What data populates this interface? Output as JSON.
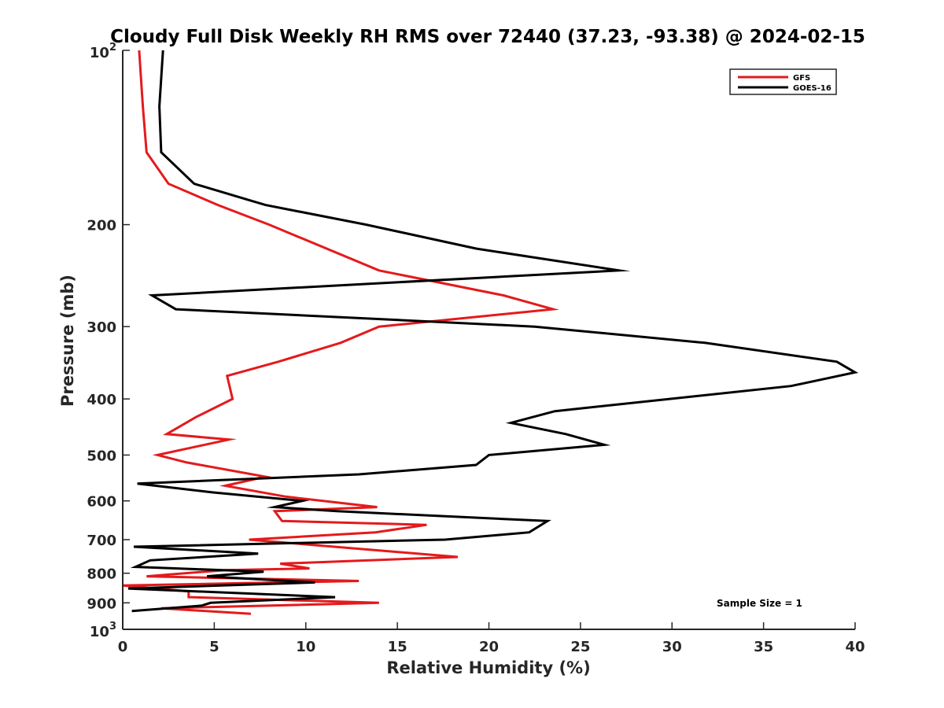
{
  "chart_data": {
    "type": "line",
    "title": "Cloudy Full Disk Weekly RH RMS over 72440 (37.23, -93.38) @ 2024-02-15",
    "xlabel": "Relative Humidity (%)",
    "ylabel": "Pressure (mb)",
    "xlim": [
      0,
      40
    ],
    "ylim": [
      100,
      1000
    ],
    "y_scale": "log",
    "y_reversed": true,
    "x_ticks": [
      "0",
      "5",
      "10",
      "15",
      "20",
      "25",
      "30",
      "35",
      "40"
    ],
    "y_ticks": [
      {
        "value": 100,
        "base": "10",
        "exp": "2"
      },
      {
        "value": 200,
        "label": "200"
      },
      {
        "value": 300,
        "label": "300"
      },
      {
        "value": 400,
        "label": "400"
      },
      {
        "value": 500,
        "label": "500"
      },
      {
        "value": 600,
        "label": "600"
      },
      {
        "value": 700,
        "label": "700"
      },
      {
        "value": 800,
        "label": "800"
      },
      {
        "value": 900,
        "label": "900"
      },
      {
        "value": 1000,
        "base": "10",
        "exp": "3"
      }
    ],
    "legend_position": "top-right",
    "annotation": "Sample Size = 1",
    "series": [
      {
        "name": "GFS",
        "color": "#e41a1c",
        "points": [
          [
            0.9,
            100
          ],
          [
            1.1,
            125
          ],
          [
            1.3,
            150
          ],
          [
            2.5,
            170
          ],
          [
            5.2,
            185
          ],
          [
            8.0,
            200
          ],
          [
            14.0,
            240
          ],
          [
            20.8,
            265
          ],
          [
            23.5,
            280
          ],
          [
            14.0,
            300
          ],
          [
            11.9,
            320
          ],
          [
            8.5,
            345
          ],
          [
            5.7,
            365
          ],
          [
            6.0,
            400
          ],
          [
            4.0,
            430
          ],
          [
            2.4,
            460
          ],
          [
            5.8,
            470
          ],
          [
            1.9,
            500
          ],
          [
            3.5,
            515
          ],
          [
            7.8,
            545
          ],
          [
            5.6,
            565
          ],
          [
            8.9,
            590
          ],
          [
            13.9,
            615
          ],
          [
            8.3,
            625
          ],
          [
            8.7,
            650
          ],
          [
            16.6,
            660
          ],
          [
            13.8,
            680
          ],
          [
            6.9,
            700
          ],
          [
            18.3,
            750
          ],
          [
            8.6,
            770
          ],
          [
            10.2,
            785
          ],
          [
            5.6,
            790
          ],
          [
            1.3,
            810
          ],
          [
            12.9,
            825
          ],
          [
            0.0,
            840
          ],
          [
            3.6,
            860
          ],
          [
            3.6,
            880
          ],
          [
            14.0,
            900
          ],
          [
            2.1,
            920
          ],
          [
            7.0,
            940
          ]
        ]
      },
      {
        "name": "GOES-16",
        "color": "#000000",
        "points": [
          [
            2.2,
            100
          ],
          [
            2.0,
            125
          ],
          [
            2.1,
            150
          ],
          [
            3.9,
            170
          ],
          [
            7.8,
            185
          ],
          [
            13.3,
            200
          ],
          [
            19.3,
            220
          ],
          [
            27.1,
            240
          ],
          [
            1.6,
            265
          ],
          [
            2.9,
            280
          ],
          [
            22.5,
            300
          ],
          [
            31.8,
            320
          ],
          [
            39.0,
            345
          ],
          [
            40.0,
            360
          ],
          [
            36.5,
            380
          ],
          [
            23.6,
            420
          ],
          [
            21.2,
            440
          ],
          [
            24.2,
            460
          ],
          [
            26.3,
            480
          ],
          [
            20.0,
            500
          ],
          [
            19.3,
            520
          ],
          [
            12.9,
            540
          ],
          [
            0.8,
            560
          ],
          [
            4.9,
            580
          ],
          [
            9.8,
            600
          ],
          [
            8.3,
            615
          ],
          [
            11.7,
            625
          ],
          [
            23.2,
            650
          ],
          [
            22.2,
            680
          ],
          [
            17.6,
            700
          ],
          [
            0.6,
            720
          ],
          [
            7.4,
            740
          ],
          [
            1.5,
            760
          ],
          [
            0.7,
            780
          ],
          [
            7.7,
            795
          ],
          [
            4.6,
            810
          ],
          [
            10.5,
            830
          ],
          [
            0.3,
            850
          ],
          [
            11.6,
            880
          ],
          [
            4.8,
            900
          ],
          [
            4.3,
            910
          ],
          [
            0.5,
            930
          ]
        ]
      }
    ]
  }
}
